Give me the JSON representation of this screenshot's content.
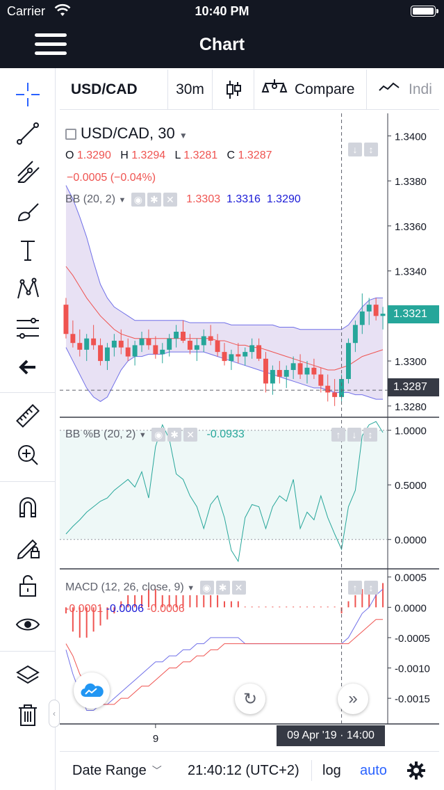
{
  "status": {
    "carrier": "Carrier",
    "time": "10:40 PM"
  },
  "nav": {
    "title": "Chart"
  },
  "toolbar": {
    "symbol": "USD/CAD",
    "interval": "30m",
    "compare_label": "Compare",
    "indicators_label": "Indi"
  },
  "legend": {
    "title": "USD/CAD, 30",
    "o_label": "O",
    "o": "1.3290",
    "h_label": "H",
    "h": "1.3294",
    "l_label": "L",
    "l": "1.3281",
    "c_label": "C",
    "c": "1.3287",
    "change": "−0.0005 (−0.04%)",
    "bb_label": "BB (20, 2)",
    "bb_upper": "1.3303",
    "bb_basis": "1.3316",
    "bb_lower": "1.3290",
    "pctb_label": "BB %B (20, 2)",
    "pctb_value": "-0.0933",
    "macd_label": "MACD (12, 26, close, 9)",
    "macd_hist": "-0.0001",
    "macd_line": "-0.0006",
    "macd_signal": "-0.0006"
  },
  "price_axis": {
    "main": [
      "1.3400",
      "1.3380",
      "1.3360",
      "1.3340",
      "1.3320",
      "1.3300",
      "1.3280"
    ],
    "pctb": [
      "1.0000",
      "0.5000",
      "0.0000"
    ],
    "macd": [
      "0.0005",
      "0.0000",
      "-0.0005",
      "-0.0010",
      "-0.0015"
    ],
    "last_price": "1.3321",
    "crosshair_price": "1.3287"
  },
  "time_axis": {
    "tick": "9",
    "crosshair_time": "09 Apr '19 · 14:00"
  },
  "bottom": {
    "date_range": "Date Range",
    "clock": "21:40:12 (UTC+2)",
    "log": "log",
    "auto": "auto"
  },
  "colors": {
    "up": "#26a69a",
    "down": "#ef5350",
    "band_fill": "#d1c4e9",
    "accent": "#2962ff",
    "last_price": "#26a69a",
    "crosshair_box": "#363a45"
  },
  "chart_data": {
    "type": "line",
    "title": "USD/CAD, 30",
    "candles_ohlc": [
      [
        1.3325,
        1.3328,
        1.331,
        1.3312
      ],
      [
        1.3312,
        1.3318,
        1.3306,
        1.3308
      ],
      [
        1.3308,
        1.3314,
        1.3302,
        1.3305
      ],
      [
        1.3305,
        1.3312,
        1.33,
        1.331
      ],
      [
        1.331,
        1.3316,
        1.3305,
        1.3307
      ],
      [
        1.3307,
        1.331,
        1.3298,
        1.33
      ],
      [
        1.33,
        1.3308,
        1.3296,
        1.3306
      ],
      [
        1.3306,
        1.3312,
        1.3302,
        1.3309
      ],
      [
        1.3309,
        1.3314,
        1.3303,
        1.3306
      ],
      [
        1.3306,
        1.331,
        1.33,
        1.3302
      ],
      [
        1.3302,
        1.3309,
        1.3298,
        1.3307
      ],
      [
        1.3307,
        1.3313,
        1.3304,
        1.331
      ],
      [
        1.331,
        1.3314,
        1.3305,
        1.3307
      ],
      [
        1.3307,
        1.3311,
        1.3301,
        1.3303
      ],
      [
        1.3303,
        1.3308,
        1.3299,
        1.3305
      ],
      [
        1.3305,
        1.3312,
        1.3302,
        1.331
      ],
      [
        1.331,
        1.3316,
        1.3306,
        1.3313
      ],
      [
        1.3313,
        1.3318,
        1.3308,
        1.3309
      ],
      [
        1.3309,
        1.3312,
        1.3303,
        1.3305
      ],
      [
        1.3305,
        1.331,
        1.33,
        1.3307
      ],
      [
        1.3307,
        1.3314,
        1.3304,
        1.3311
      ],
      [
        1.3311,
        1.3316,
        1.3307,
        1.3309
      ],
      [
        1.3309,
        1.3312,
        1.3302,
        1.3304
      ],
      [
        1.3304,
        1.3308,
        1.3298,
        1.33
      ],
      [
        1.33,
        1.3305,
        1.3296,
        1.3303
      ],
      [
        1.3303,
        1.3308,
        1.3299,
        1.3302
      ],
      [
        1.3302,
        1.3306,
        1.3298,
        1.3304
      ],
      [
        1.3304,
        1.331,
        1.3301,
        1.3307
      ],
      [
        1.3307,
        1.331,
        1.33,
        1.3301
      ],
      [
        1.3301,
        1.3304,
        1.3286,
        1.329
      ],
      [
        1.329,
        1.3298,
        1.3285,
        1.3296
      ],
      [
        1.3296,
        1.33,
        1.329,
        1.3293
      ],
      [
        1.3293,
        1.3298,
        1.3288,
        1.3296
      ],
      [
        1.3296,
        1.3302,
        1.3292,
        1.3299
      ],
      [
        1.3299,
        1.3303,
        1.3292,
        1.3294
      ],
      [
        1.3294,
        1.33,
        1.329,
        1.3297
      ],
      [
        1.3297,
        1.3301,
        1.3292,
        1.3294
      ],
      [
        1.3294,
        1.3297,
        1.3286,
        1.3289
      ],
      [
        1.3289,
        1.3294,
        1.3282,
        1.3286
      ],
      [
        1.3286,
        1.3292,
        1.328,
        1.3284
      ],
      [
        1.3284,
        1.3294,
        1.3282,
        1.3292
      ],
      [
        1.3292,
        1.331,
        1.329,
        1.3308
      ],
      [
        1.3308,
        1.3318,
        1.3304,
        1.3316
      ],
      [
        1.3316,
        1.333,
        1.3312,
        1.3322
      ],
      [
        1.3322,
        1.3328,
        1.3316,
        1.3325
      ],
      [
        1.3325,
        1.3328,
        1.3318,
        1.332
      ],
      [
        1.332,
        1.3324,
        1.3314,
        1.3321
      ]
    ],
    "bb_upper": [
      1.3378,
      1.3372,
      1.3364,
      1.3355,
      1.3344,
      1.3334,
      1.3328,
      1.3324,
      1.3322,
      1.332,
      1.3318,
      1.3318,
      1.3318,
      1.3318,
      1.3318,
      1.3318,
      1.3318,
      1.3318,
      1.3317,
      1.3317,
      1.3317,
      1.3317,
      1.3317,
      1.3317,
      1.3316,
      1.3316,
      1.3316,
      1.3316,
      1.3316,
      1.3316,
      1.3316,
      1.3315,
      1.3315,
      1.3315,
      1.3314,
      1.3314,
      1.3314,
      1.3314,
      1.3314,
      1.3314,
      1.3314,
      1.3316,
      1.332,
      1.3324,
      1.3327,
      1.3328,
      1.3328
    ],
    "bb_lower": [
      1.3306,
      1.33,
      1.3294,
      1.3288,
      1.3284,
      1.3282,
      1.3284,
      1.329,
      1.3296,
      1.33,
      1.3302,
      1.3302,
      1.3303,
      1.3303,
      1.3303,
      1.3304,
      1.3304,
      1.3304,
      1.3304,
      1.3304,
      1.3304,
      1.3303,
      1.3302,
      1.3301,
      1.33,
      1.3299,
      1.3298,
      1.3297,
      1.3296,
      1.3295,
      1.3294,
      1.3293,
      1.3292,
      1.3291,
      1.329,
      1.3289,
      1.3288,
      1.3288,
      1.3287,
      1.3286,
      1.3286,
      1.3286,
      1.3285,
      1.3285,
      1.3284,
      1.3283,
      1.3283
    ],
    "bb_basis": [
      1.3342,
      1.3338,
      1.3333,
      1.3328,
      1.3324,
      1.332,
      1.3317,
      1.3314,
      1.3312,
      1.3311,
      1.331,
      1.331,
      1.331,
      1.331,
      1.331,
      1.331,
      1.331,
      1.331,
      1.331,
      1.331,
      1.331,
      1.331,
      1.3309,
      1.3309,
      1.3308,
      1.3307,
      1.3307,
      1.3306,
      1.3306,
      1.3305,
      1.3304,
      1.3303,
      1.3302,
      1.3301,
      1.33,
      1.3299,
      1.3298,
      1.3297,
      1.3296,
      1.3296,
      1.3297,
      1.3298,
      1.33,
      1.3302,
      1.3303,
      1.3304,
      1.3305
    ],
    "pctb": [
      0.05,
      0.12,
      0.18,
      0.25,
      0.3,
      0.35,
      0.38,
      0.45,
      0.5,
      0.55,
      0.48,
      0.62,
      0.38,
      0.85,
      1.05,
      0.92,
      0.6,
      0.55,
      0.4,
      0.3,
      0.1,
      0.32,
      0.4,
      0.2,
      -0.1,
      -0.2,
      0.2,
      0.32,
      0.3,
      0.1,
      0.3,
      0.4,
      0.35,
      0.55,
      0.1,
      0.25,
      0.18,
      0.4,
      0.2,
      0.05,
      -0.09,
      0.3,
      0.45,
      0.95,
      1.05,
      1.08,
      0.98
    ],
    "macd_line": [
      -0.0007,
      -0.0011,
      -0.0014,
      -0.0017,
      -0.0017,
      -0.0016,
      -0.0016,
      -0.0015,
      -0.0014,
      -0.0013,
      -0.0012,
      -0.0011,
      -0.001,
      -0.0009,
      -0.0009,
      -0.0008,
      -0.0008,
      -0.0007,
      -0.0007,
      -0.0006,
      -0.0006,
      -0.0005,
      -0.0005,
      -0.0005,
      -0.0005,
      -0.0005,
      -0.0006,
      -0.0006,
      -0.0006,
      -0.0006,
      -0.0006,
      -0.0006,
      -0.0006,
      -0.0006,
      -0.0006,
      -0.0006,
      -0.0006,
      -0.0006,
      -0.0006,
      -0.0006,
      -0.0006,
      -0.0005,
      -0.0003,
      -0.0001,
      0.0,
      0.0002,
      0.0003
    ],
    "macd_signal": [
      -0.0006,
      -0.0008,
      -0.0011,
      -0.0013,
      -0.0015,
      -0.0016,
      -0.0016,
      -0.0016,
      -0.0015,
      -0.0015,
      -0.0014,
      -0.0013,
      -0.0013,
      -0.0012,
      -0.0011,
      -0.001,
      -0.001,
      -0.0009,
      -0.0009,
      -0.0008,
      -0.0008,
      -0.0007,
      -0.0007,
      -0.0006,
      -0.0006,
      -0.0006,
      -0.0006,
      -0.0006,
      -0.0006,
      -0.0006,
      -0.0006,
      -0.0006,
      -0.0006,
      -0.0006,
      -0.0006,
      -0.0006,
      -0.0006,
      -0.0006,
      -0.0006,
      -0.0006,
      -0.0006,
      -0.0006,
      -0.0005,
      -0.0004,
      -0.0003,
      -0.0002,
      -0.0002
    ],
    "macd_hist": [
      -0.0001,
      -0.0004,
      -0.0005,
      -0.0005,
      -0.0004,
      -0.0003,
      -0.0002,
      -0.0001,
      0.0001,
      0.0002,
      0.0002,
      0.0002,
      0.0003,
      0.0003,
      0.0002,
      0.0002,
      0.0002,
      0.0002,
      0.0002,
      0.0002,
      0.0002,
      0.0002,
      0.0002,
      0.0001,
      0.0001,
      0.0001,
      0.0,
      0.0,
      0.0,
      0.0,
      0.0,
      0.0,
      0.0,
      0.0,
      0.0,
      0.0,
      0.0,
      0.0,
      0.0,
      0.0,
      -0.0001,
      0.0001,
      0.0002,
      0.0003,
      0.0003,
      0.0004,
      0.0004
    ],
    "ylim_main": [
      1.3275,
      1.341
    ],
    "ylim_pctb": [
      -0.25,
      1.1
    ],
    "ylim_macd": [
      -0.0019,
      0.0006
    ],
    "grid": false
  }
}
